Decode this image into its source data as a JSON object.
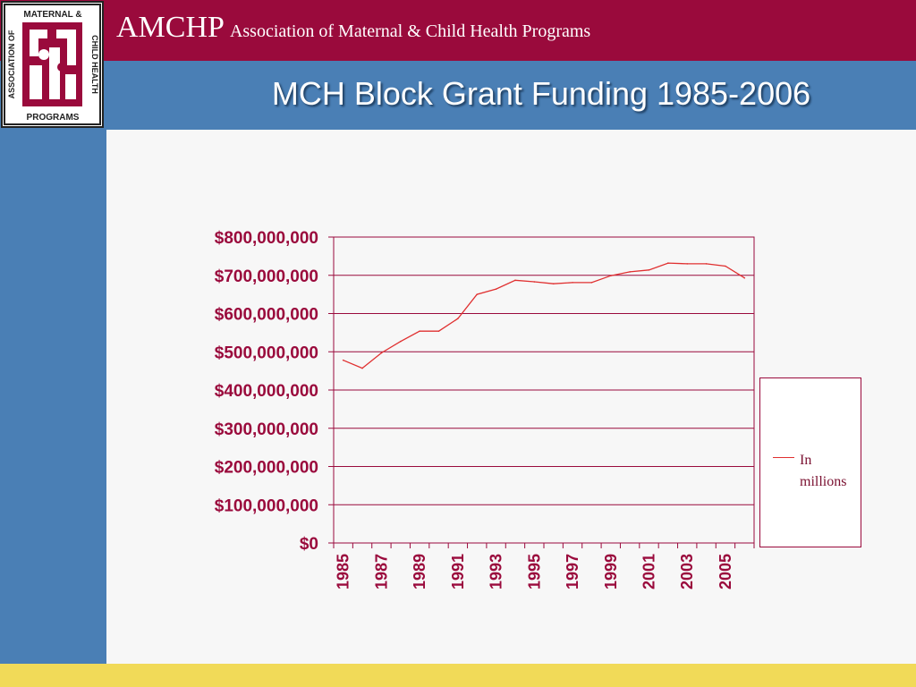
{
  "header": {
    "brand_name": "AMCHP",
    "brand_full": "Association of Maternal & Child Health Programs",
    "logo_text_top": "MATERNAL &",
    "logo_text_left": "ASSOCIATION OF",
    "logo_text_right": "CHILD HEALTH",
    "logo_text_bottom": "PROGRAMS"
  },
  "slide": {
    "title": "MCH Block Grant Funding 1985-2006"
  },
  "colors": {
    "banner": "#9a0a3c",
    "blue": "#4a7fb5",
    "footer": "#f1da58",
    "series_line": "#e03030",
    "axis_text": "#9a0a3c"
  },
  "chart_data": {
    "type": "line",
    "title": "",
    "xlabel": "",
    "ylabel": "",
    "ylim": [
      0,
      800000000
    ],
    "y_ticks": [
      "$0",
      "$100,000,000",
      "$200,000,000",
      "$300,000,000",
      "$400,000,000",
      "$500,000,000",
      "$600,000,000",
      "$700,000,000",
      "$800,000,000"
    ],
    "x": [
      1985,
      1986,
      1987,
      1988,
      1989,
      1990,
      1991,
      1992,
      1993,
      1994,
      1995,
      1996,
      1997,
      1998,
      1999,
      2000,
      2001,
      2002,
      2003,
      2004,
      2005,
      2006
    ],
    "x_tick_labels": [
      "1985",
      "1987",
      "1989",
      "1991",
      "1993",
      "1995",
      "1997",
      "1999",
      "2001",
      "2003",
      "2005"
    ],
    "grid": true,
    "legend": "right",
    "series": [
      {
        "name": "In millions",
        "values": [
          478000000,
          457000000,
          497000000,
          527000000,
          554000000,
          554000000,
          587000000,
          650000000,
          664000000,
          687000000,
          683000000,
          678000000,
          681000000,
          681000000,
          699000000,
          709000000,
          714000000,
          732000000,
          730000000,
          730000000,
          724000000,
          693000000
        ]
      }
    ]
  }
}
